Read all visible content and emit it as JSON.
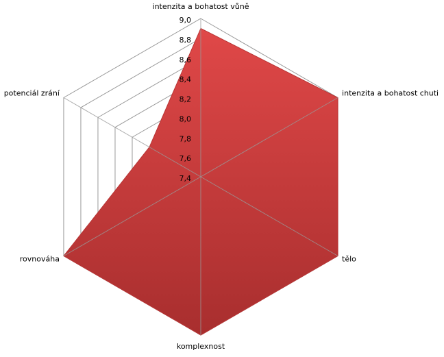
{
  "chart_data": {
    "type": "radar",
    "categories": [
      "intenzita a bohatost vůně",
      "intenzita a bohatost chuti",
      "tělo",
      "komplexnost",
      "rovnováha",
      "potenciál zrání"
    ],
    "values": [
      8.9,
      9.0,
      9.0,
      9.0,
      9.0,
      8.0
    ],
    "color": "#d94242",
    "rlim": [
      7.4,
      9.0
    ],
    "rticks": [
      {
        "value": 7.4,
        "label": "7,4"
      },
      {
        "value": 7.6,
        "label": "7,6"
      },
      {
        "value": 7.8,
        "label": "7,8"
      },
      {
        "value": 8.0,
        "label": "8,0"
      },
      {
        "value": 8.2,
        "label": "8,2"
      },
      {
        "value": 8.4,
        "label": "8,4"
      },
      {
        "value": 8.6,
        "label": "8,6"
      },
      {
        "value": 8.8,
        "label": "8,8"
      },
      {
        "value": 9.0,
        "label": "9,0"
      }
    ],
    "grid": true
  }
}
